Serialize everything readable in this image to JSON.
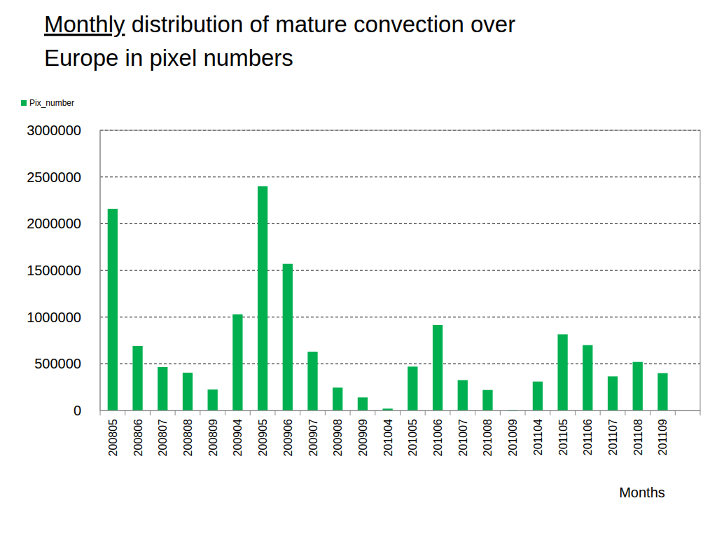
{
  "chart_data": {
    "type": "bar",
    "title": "Monthly distribution of mature convection over Europe in pixel numbers",
    "x_label": "Months",
    "categories": [
      "200805",
      "200806",
      "200807",
      "200808",
      "200809",
      "200904",
      "200905",
      "200906",
      "200907",
      "200908",
      "200909",
      "201004",
      "201005",
      "201006",
      "201007",
      "201008",
      "201009",
      "201104",
      "201105",
      "201106",
      "201107",
      "201108",
      "201109",
      null
    ],
    "series": [
      {
        "name": "Pix_number",
        "color": "#00b050",
        "values": [
          2160000,
          690000,
          465000,
          405000,
          225000,
          1030000,
          2400000,
          1570000,
          630000,
          245000,
          140000,
          20000,
          470000,
          915000,
          325000,
          220000,
          5000,
          310000,
          815000,
          700000,
          365000,
          520000,
          400000,
          null
        ]
      }
    ],
    "ylim": [
      0,
      3000000
    ],
    "yticks": [
      0,
      500000,
      1000000,
      1500000,
      2000000,
      2500000,
      3000000
    ],
    "grid": true,
    "legend": "top-left"
  }
}
